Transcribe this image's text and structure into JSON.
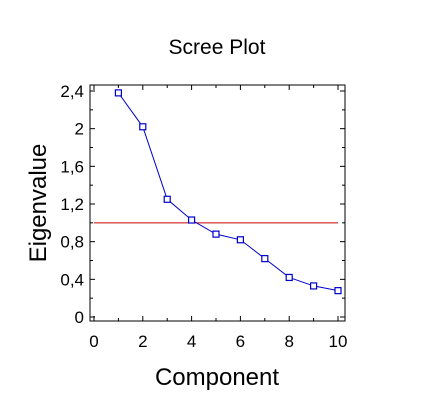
{
  "chart_data": {
    "type": "line",
    "title": "Scree Plot",
    "xlabel": "Component",
    "ylabel": "Eigenvalue",
    "xlim": [
      0,
      10
    ],
    "ylim": [
      0,
      2.4
    ],
    "x_ticks": [
      "0",
      "2",
      "4",
      "6",
      "8",
      "10"
    ],
    "y_ticks": [
      "0",
      "0,4",
      "0,8",
      "1,2",
      "1,6",
      "2",
      "2,4"
    ],
    "series": [
      {
        "x": [
          1,
          2,
          3,
          4,
          5,
          6,
          7,
          8,
          9,
          10
        ],
        "y": [
          2.38,
          2.02,
          1.25,
          1.03,
          0.88,
          0.82,
          0.62,
          0.42,
          0.33,
          0.28
        ],
        "color": "#0000cc",
        "marker": "square"
      }
    ],
    "reference_line": {
      "y": 1.0,
      "color": "#cc0000"
    },
    "grid": false
  }
}
